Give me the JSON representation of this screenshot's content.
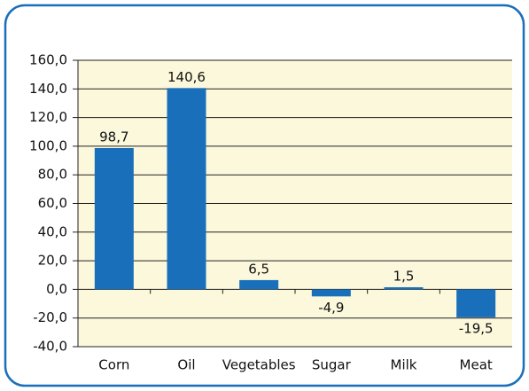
{
  "chart_data": {
    "type": "bar",
    "categories": [
      "Corn",
      "Oil",
      "Vegetables",
      "Sugar",
      "Milk",
      "Meat"
    ],
    "values": [
      98.7,
      140.6,
      6.5,
      -4.9,
      1.5,
      -19.5
    ],
    "value_labels": [
      "98,7",
      "140,6",
      "6,5",
      "-4,9",
      "1,5",
      "-19,5"
    ],
    "color": "#1a6fba",
    "ylim": [
      -40,
      160
    ],
    "yticks": [
      {
        "value": -40,
        "label": "-40,0"
      },
      {
        "value": -20,
        "label": "-20,0"
      },
      {
        "value": 0,
        "label": "0,0"
      },
      {
        "value": 20,
        "label": "20,0"
      },
      {
        "value": 40,
        "label": "40,0"
      },
      {
        "value": 60,
        "label": "60,0"
      },
      {
        "value": 80,
        "label": "80,0"
      },
      {
        "value": 100,
        "label": "100,0"
      },
      {
        "value": 120,
        "label": "120,0"
      },
      {
        "value": 140,
        "label": "140,0"
      },
      {
        "value": 160,
        "label": "160,0"
      }
    ],
    "grid": true
  }
}
